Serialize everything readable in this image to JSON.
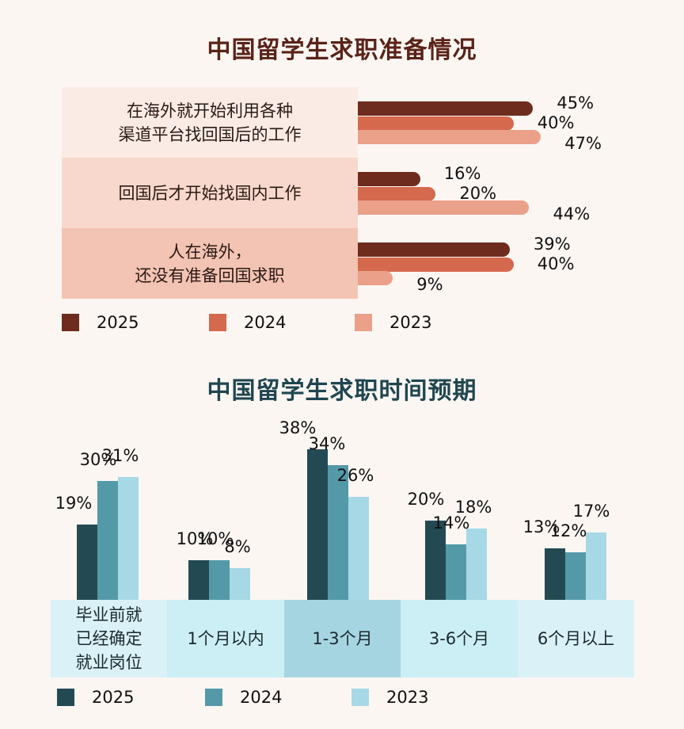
{
  "chart_data": [
    {
      "type": "bar",
      "orientation": "horizontal",
      "title": "中国留学生求职准备情况",
      "categories": [
        "在海外就开始利用各种\n渠道平台找回国后的工作",
        "回国后才开始找国内工作",
        "人在海外，\n还没有准备回国求职"
      ],
      "series": [
        {
          "name": "2025",
          "values": [
            45,
            16,
            39
          ],
          "labels": [
            "45%",
            "16%",
            "39%"
          ],
          "color": "#6e2c1f"
        },
        {
          "name": "2024",
          "values": [
            40,
            20,
            40
          ],
          "labels": [
            "40%",
            "20%",
            "40%"
          ],
          "color": "#d4694d"
        },
        {
          "name": "2023",
          "values": [
            47,
            44,
            9
          ],
          "labels": [
            "47%",
            "44%",
            "9%"
          ],
          "color": "#eba08a"
        }
      ],
      "category_colors": [
        "#fbebe5",
        "#f8d8cc",
        "#f3c3b3"
      ],
      "xlim": [
        0,
        100
      ]
    },
    {
      "type": "bar",
      "title": "中国留学生求职时间预期",
      "categories": [
        "毕业前就\n已经确定\n就业岗位",
        "1个月以内",
        "1-3个月",
        "3-6个月",
        "6个月以上"
      ],
      "series": [
        {
          "name": "2025",
          "values": [
            19,
            10,
            38,
            20,
            13
          ],
          "labels": [
            "19%",
            "10%",
            "38%",
            "20%",
            "13%"
          ],
          "color": "#234a53"
        },
        {
          "name": "2024",
          "values": [
            30,
            10,
            34,
            14,
            12
          ],
          "labels": [
            "30%",
            "10%",
            "34%",
            "14%",
            "12%"
          ],
          "color": "#5499a8"
        },
        {
          "name": "2023",
          "values": [
            31,
            8,
            26,
            18,
            17
          ],
          "labels": [
            "31%",
            "8%",
            "26%",
            "18%",
            "17%"
          ],
          "color": "#a6d8e5"
        }
      ],
      "category_colors": [
        "#daf1f7",
        "#cceef5",
        "#a6d5e2",
        "#cceef5",
        "#daf1f7"
      ],
      "ylim": [
        0,
        45
      ]
    }
  ]
}
